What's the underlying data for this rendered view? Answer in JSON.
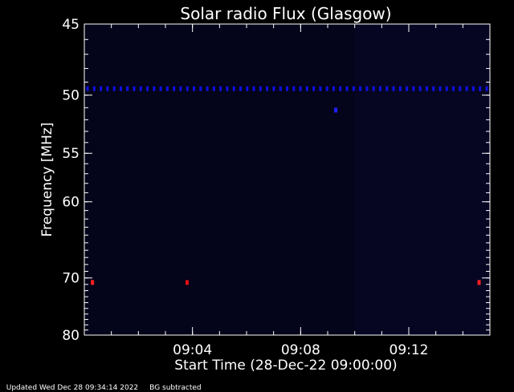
{
  "chart_data": {
    "type": "heatmap",
    "title": "Solar radio Flux (Glasgow)",
    "xlabel": "Start Time (28-Dec-22 09:00:00)",
    "ylabel": "Frequency [MHz]",
    "x_range_minutes": [
      0,
      15
    ],
    "x_ticks": [
      {
        "minute": 4,
        "label": "09:04"
      },
      {
        "minute": 8,
        "label": "09:08"
      },
      {
        "minute": 12,
        "label": "09:12"
      }
    ],
    "y_range_mhz": [
      45,
      80
    ],
    "y_scale": "reciprocal (frequency decreases downward)",
    "y_ticks": [
      {
        "mhz": 45,
        "label": "45"
      },
      {
        "mhz": 50,
        "label": "50"
      },
      {
        "mhz": 55,
        "label": "55"
      },
      {
        "mhz": 60,
        "label": "60"
      },
      {
        "mhz": 70,
        "label": "70"
      },
      {
        "mhz": 80,
        "label": "80"
      }
    ],
    "features": [
      {
        "kind": "band",
        "mhz": 49.5,
        "from_minute": 0,
        "to_minute": 15,
        "color": "#1010e0"
      },
      {
        "kind": "spot",
        "mhz": 51.2,
        "minute": 9.3,
        "color": "#2020ff"
      },
      {
        "kind": "spot",
        "mhz": 70.7,
        "minute": 0.3,
        "color": "#ff2020"
      },
      {
        "kind": "spot",
        "mhz": 70.7,
        "minute": 3.8,
        "color": "#e01010"
      },
      {
        "kind": "spot",
        "mhz": 70.7,
        "minute": 14.6,
        "color": "#ff2020"
      }
    ],
    "colors": {
      "background": "#000000",
      "axis": "#ffffff",
      "plot_bg": "#04041a"
    }
  },
  "footer": {
    "updated": "Updated Wed Dec 28 09:34:14 2022",
    "note": "BG subtracted"
  }
}
